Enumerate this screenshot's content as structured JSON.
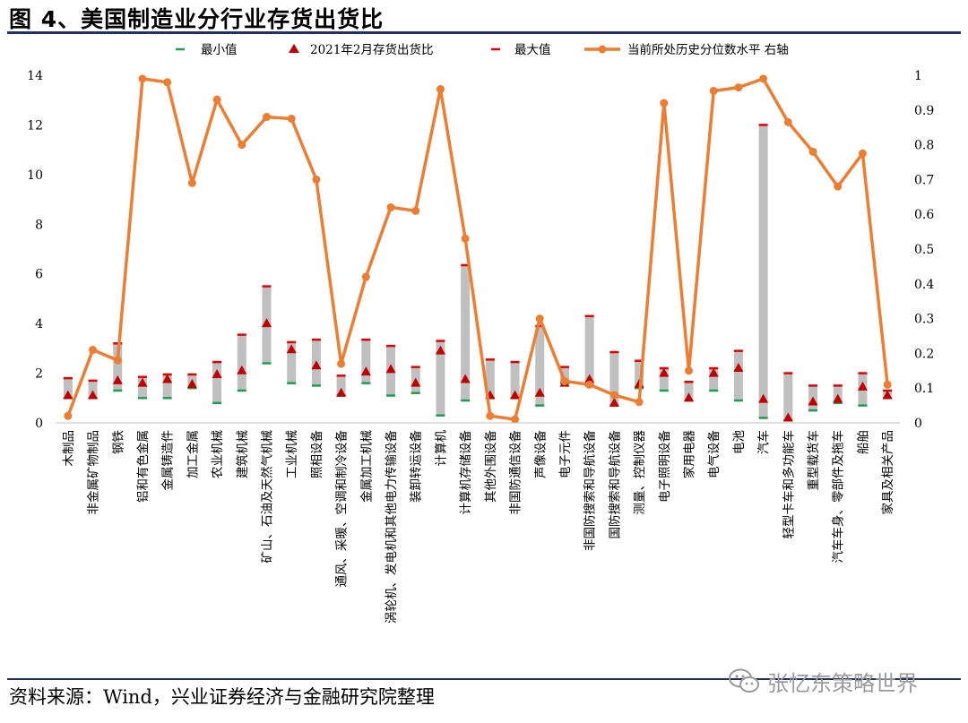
{
  "title": "图 4、美国制造业分行业存货出货比",
  "source": "资料来源：Wind，兴业证券经济与金融研究院整理",
  "watermark": "张忆东策略世界",
  "colors": {
    "min": "#1aa050",
    "current": "#c00000",
    "max": "#e00000",
    "bar": "#c0c0c0",
    "percentile": "#ed7d31",
    "rule": "#1f2f6a"
  },
  "chart_data": {
    "type": "bar",
    "legend": [
      "最小值",
      "2021年2月存货出货比",
      "最大值",
      "当前所处历史分位数水平 右轴"
    ],
    "legend_position": "top",
    "categories": [
      "木制品",
      "非金属矿物制品",
      "钢铁",
      "铝和有色金属",
      "金属铸造件",
      "加工金属",
      "农业机械",
      "建筑机械",
      "矿山、石油及天然气机械",
      "工业机械",
      "照相设备",
      "通风、采暖、空调和制冷设备",
      "金属加工机械",
      "涡轮机、发电机和其他电力传输设备",
      "装卸转运设备",
      "计算机",
      "计算机存储设备",
      "其他外围设备",
      "非国防通信设备",
      "声像设备",
      "电子元件",
      "非国防搜索和导航设备",
      "国防搜索和导航设备",
      "测量、控制仪器",
      "电子照明设备",
      "家用电器",
      "电气设备",
      "电池",
      "汽车",
      "轻型卡车和多功能车",
      "重型载货车",
      "汽车车身、零部件及拖车",
      "船舶",
      "家具及相关产品"
    ],
    "series": [
      {
        "name": "最小值",
        "values": [
          1.0,
          1.0,
          1.3,
          1.0,
          1.0,
          1.4,
          0.8,
          1.3,
          2.4,
          1.6,
          1.5,
          1.1,
          1.6,
          1.1,
          1.2,
          0.3,
          0.9,
          1.0,
          1.0,
          0.7,
          1.6,
          1.5,
          0.7,
          1.4,
          1.3,
          0.9,
          1.3,
          0.9,
          0.2,
          0.1,
          0.5,
          0.8,
          0.7,
          1.0
        ]
      },
      {
        "name": "2021年2月存货出货比",
        "values": [
          1.1,
          1.1,
          1.7,
          1.6,
          1.75,
          1.55,
          1.95,
          2.1,
          4.0,
          2.95,
          2.3,
          1.2,
          2.05,
          2.15,
          1.6,
          2.9,
          1.75,
          1.1,
          1.1,
          1.2,
          1.6,
          1.75,
          0.8,
          1.55,
          2.0,
          1.0,
          2.0,
          2.2,
          0.95,
          0.2,
          0.85,
          0.95,
          1.45,
          1.1
        ]
      },
      {
        "name": "最大值",
        "values": [
          1.8,
          1.7,
          3.2,
          1.85,
          1.95,
          1.95,
          2.45,
          3.55,
          5.5,
          3.25,
          3.35,
          1.9,
          3.35,
          3.1,
          2.25,
          3.3,
          6.35,
          2.55,
          2.45,
          3.9,
          2.25,
          4.3,
          2.85,
          2.5,
          2.2,
          1.65,
          2.2,
          2.9,
          12.0,
          2.0,
          1.5,
          1.5,
          2.0,
          1.3
        ]
      },
      {
        "name": "当前所处历史分位数水平 右轴",
        "axis": "right",
        "values": [
          0.02,
          0.21,
          0.18,
          0.99,
          0.98,
          0.69,
          0.93,
          0.8,
          0.88,
          0.875,
          0.7,
          0.17,
          0.42,
          0.62,
          0.61,
          0.96,
          0.53,
          0.02,
          0.01,
          0.3,
          0.12,
          0.11,
          0.08,
          0.06,
          0.92,
          0.15,
          0.955,
          0.965,
          0.99,
          0.865,
          0.78,
          0.68,
          0.775,
          0.11
        ]
      }
    ],
    "y_left": {
      "min": 0,
      "max": 14,
      "ticks": [
        0,
        2,
        4,
        6,
        8,
        10,
        12,
        14
      ]
    },
    "y_right": {
      "min": 0,
      "max": 1,
      "ticks": [
        "0",
        "0.1",
        "0.2",
        "0.3",
        "0.4",
        "0.5",
        "0.6",
        "0.7",
        "0.8",
        "0.9",
        "1"
      ]
    },
    "grid": false
  }
}
